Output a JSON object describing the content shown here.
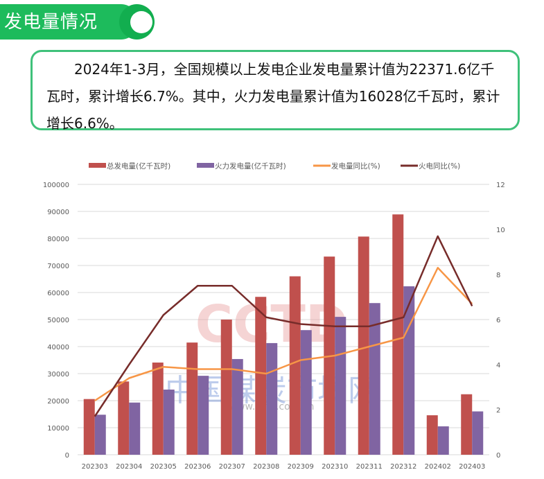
{
  "header": {
    "title": "发电量情况"
  },
  "summary": {
    "text": "2024年1-3月，全国规模以上发电企业发电量累计值为22371.6亿千瓦时，累计增长6.7%。其中，火力发电量累计值为16028亿千瓦时，累计增长6.6%。"
  },
  "watermark": {
    "logo": "CCTD",
    "name": "中国煤炭市场网",
    "url": "www.cctd.com.cn"
  },
  "chart_data": {
    "type": "bar",
    "categories": [
      "202303",
      "202304",
      "202305",
      "202306",
      "202307",
      "202308",
      "202309",
      "202310",
      "202311",
      "202312",
      "202402",
      "202403"
    ],
    "series": [
      {
        "name": "总发电量(亿千瓦时)",
        "type": "bar",
        "axis": "left",
        "color": "#c0504d",
        "values": [
          20600,
          27100,
          34100,
          41500,
          50000,
          58400,
          66000,
          73300,
          80700,
          88900,
          14600,
          22371.6
        ]
      },
      {
        "name": "火力发电量(亿千瓦时)",
        "type": "bar",
        "axis": "left",
        "color": "#8064a2",
        "values": [
          14800,
          19300,
          24100,
          29200,
          35400,
          41300,
          46100,
          51000,
          56100,
          62300,
          10500,
          16028
        ]
      },
      {
        "name": "发电量同比(%)",
        "type": "line",
        "axis": "right",
        "color": "#f79646",
        "values": [
          2.4,
          3.4,
          3.9,
          3.8,
          3.8,
          3.6,
          4.2,
          4.4,
          4.8,
          5.2,
          8.3,
          6.7
        ]
      },
      {
        "name": "火电同比(%)",
        "type": "line",
        "axis": "right",
        "color": "#772c2a",
        "values": [
          1.7,
          4.0,
          6.2,
          7.5,
          7.5,
          6.1,
          5.8,
          5.7,
          5.7,
          6.1,
          9.7,
          6.6
        ]
      }
    ],
    "ylim": [
      0,
      100000
    ],
    "yticks": [
      "0",
      "10000",
      "20000",
      "30000",
      "40000",
      "50000",
      "60000",
      "70000",
      "80000",
      "90000",
      "100000"
    ],
    "y2lim": [
      0,
      12
    ],
    "y2ticks": [
      "0",
      "2",
      "4",
      "6",
      "8",
      "10",
      "12"
    ],
    "legend": "top",
    "grid": true
  }
}
